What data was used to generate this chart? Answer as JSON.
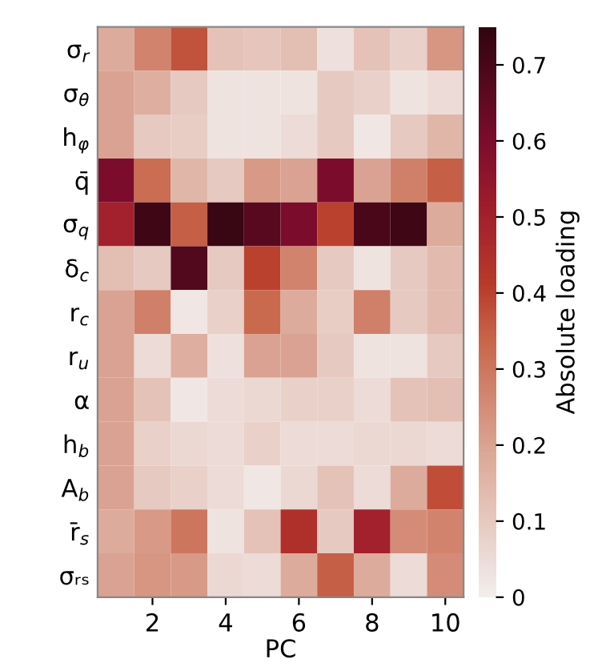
{
  "chart_data": {
    "type": "heatmap",
    "xlabel": "PC",
    "clabel": "Absolute loading",
    "categories": [
      null,
      "2",
      null,
      "4",
      null,
      "6",
      null,
      "8",
      null,
      "10"
    ],
    "y_categories": [
      "σ$_{r}$",
      "σ$_{θ}$",
      "h$_{φ}$",
      "q̄",
      "σ$_{q}$",
      "δ$_{c}$",
      "r$_{c}$",
      "r$_{u}$",
      "α",
      "h$_{b}$",
      "A$_{b}$",
      "r̄$_{s}$",
      "σᵣₛ"
    ],
    "cells": [
      [
        0.18,
        0.27,
        0.37,
        0.12,
        0.11,
        0.13,
        0.04,
        0.12,
        0.08,
        0.23
      ],
      [
        0.2,
        0.17,
        0.1,
        0.03,
        0.03,
        0.03,
        0.1,
        0.08,
        0.03,
        0.05
      ],
      [
        0.2,
        0.1,
        0.09,
        0.03,
        0.03,
        0.05,
        0.1,
        0.02,
        0.1,
        0.15
      ],
      [
        0.6,
        0.32,
        0.15,
        0.1,
        0.22,
        0.2,
        0.6,
        0.2,
        0.28,
        0.35
      ],
      [
        0.5,
        0.72,
        0.35,
        0.73,
        0.67,
        0.6,
        0.4,
        0.7,
        0.72,
        0.18
      ],
      [
        0.13,
        0.1,
        0.68,
        0.1,
        0.4,
        0.27,
        0.1,
        0.03,
        0.1,
        0.14
      ],
      [
        0.2,
        0.28,
        0.02,
        0.08,
        0.33,
        0.18,
        0.09,
        0.28,
        0.1,
        0.14
      ],
      [
        0.2,
        0.05,
        0.17,
        0.04,
        0.2,
        0.2,
        0.1,
        0.03,
        0.03,
        0.1
      ],
      [
        0.2,
        0.12,
        0.02,
        0.05,
        0.06,
        0.08,
        0.08,
        0.05,
        0.12,
        0.13
      ],
      [
        0.2,
        0.08,
        0.06,
        0.05,
        0.08,
        0.05,
        0.05,
        0.06,
        0.06,
        0.05
      ],
      [
        0.2,
        0.1,
        0.08,
        0.05,
        0.02,
        0.06,
        0.12,
        0.05,
        0.18,
        0.38
      ],
      [
        0.18,
        0.22,
        0.3,
        0.03,
        0.12,
        0.45,
        0.1,
        0.5,
        0.25,
        0.27
      ],
      [
        0.2,
        0.23,
        0.22,
        0.06,
        0.05,
        0.18,
        0.35,
        0.18,
        0.05,
        0.25
      ]
    ],
    "clim": [
      0,
      0.75
    ],
    "cticks": [
      0,
      0.1,
      0.2,
      0.3,
      0.4,
      0.5,
      0.6,
      0.7
    ]
  }
}
